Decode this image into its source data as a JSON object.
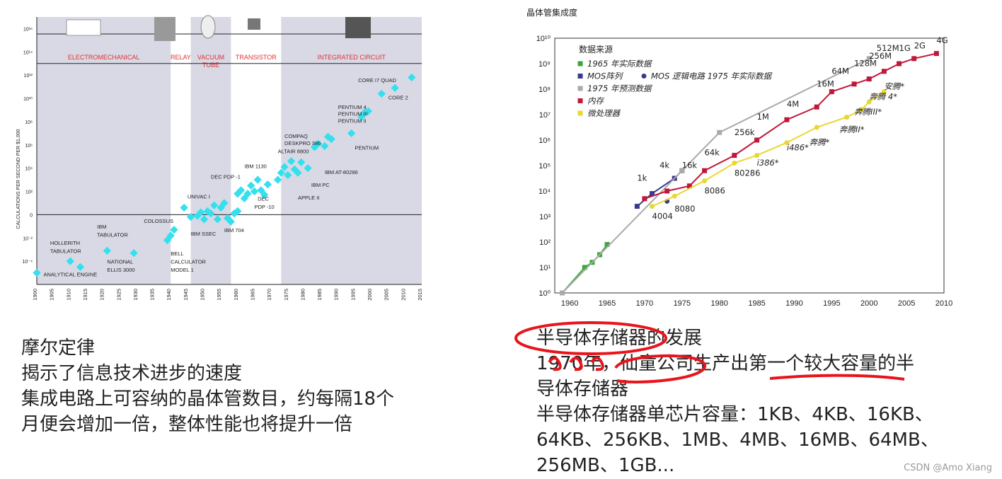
{
  "chart_data": [
    {
      "type": "scatter",
      "ylabel": "CALCULATIONS PER SECOND PER $1,000",
      "y_scale": "log",
      "y_ticks": [
        "10¹⁶",
        "10¹⁴",
        "10¹²",
        "10¹⁰",
        "10⁸",
        "10⁶",
        "10⁴",
        "10²",
        "0",
        "10⁻²",
        "10⁻⁴"
      ],
      "y_tick_values": [
        16,
        14,
        12,
        10,
        8,
        6,
        4,
        2,
        0,
        -2,
        -4
      ],
      "x_ticks": [
        "1900",
        "1905",
        "1910",
        "1915",
        "1920",
        "1925",
        "1930",
        "1935",
        "1940",
        "1945",
        "1950",
        "1955",
        "1960",
        "1965",
        "1970",
        "1975",
        "1980",
        "1985",
        "1990",
        "1995",
        "2000",
        "2005",
        "2010",
        "2015"
      ],
      "xlim": [
        1900,
        2015
      ],
      "ylim": [
        -6,
        17
      ],
      "eras": [
        {
          "label": "ELECTROMECHANICAL",
          "from": 1900,
          "to": 1940,
          "shaded": true
        },
        {
          "label": "RELAY",
          "from": 1940,
          "to": 1946,
          "shaded": false
        },
        {
          "label": "VACUUM TUBE",
          "from": 1946,
          "to": 1958,
          "shaded": true
        },
        {
          "label": "TRANSISTOR",
          "from": 1958,
          "to": 1973,
          "shaded": false
        },
        {
          "label": "INTEGRATED CIRCUIT",
          "from": 1973,
          "to": 2015,
          "shaded": true
        }
      ],
      "points": [
        [
          1900,
          -5
        ],
        [
          1910,
          -4
        ],
        [
          1913,
          -4.5
        ],
        [
          1921,
          -3.1
        ],
        [
          1929,
          -3.3
        ],
        [
          1939,
          -2.2
        ],
        [
          1940,
          -1.8
        ],
        [
          1941,
          -1.3
        ],
        [
          1944,
          0.6
        ],
        [
          1946,
          -0.2
        ],
        [
          1948,
          -0.1
        ],
        [
          1949,
          0.2
        ],
        [
          1950,
          -0.4
        ],
        [
          1951,
          0.3
        ],
        [
          1952,
          0.1
        ],
        [
          1953,
          0.8
        ],
        [
          1954,
          -0.4
        ],
        [
          1955,
          0.6
        ],
        [
          1956,
          1.0
        ],
        [
          1957,
          -0.3
        ],
        [
          1958,
          -0.6
        ],
        [
          1959,
          0.1
        ],
        [
          1960,
          0.3
        ],
        [
          1960,
          1.8
        ],
        [
          1961,
          2.1
        ],
        [
          1962,
          1.4
        ],
        [
          1963,
          1.8
        ],
        [
          1964,
          2.5
        ],
        [
          1965,
          2.0
        ],
        [
          1966,
          3.0
        ],
        [
          1967,
          2.1
        ],
        [
          1968,
          1.7
        ],
        [
          1969,
          2.6
        ],
        [
          1972,
          3.0
        ],
        [
          1973,
          3.6
        ],
        [
          1974,
          4.1
        ],
        [
          1975,
          3.4
        ],
        [
          1976,
          4.6
        ],
        [
          1977,
          3.9
        ],
        [
          1978,
          3.6
        ],
        [
          1979,
          4.5
        ],
        [
          1981,
          4.0
        ],
        [
          1983,
          5.8
        ],
        [
          1984,
          6.1
        ],
        [
          1986,
          5.9
        ],
        [
          1987,
          6.7
        ],
        [
          1988,
          6.5
        ],
        [
          1994,
          7.0
        ],
        [
          1997,
          8.4
        ],
        [
          1998,
          8.8
        ],
        [
          1999,
          8.9
        ],
        [
          2003,
          10.4
        ],
        [
          2007,
          10.9
        ],
        [
          2012,
          11.8
        ]
      ],
      "annotations": [
        "ANALYTICAL ENGINE",
        "HOLLERITH TABULATOR",
        "IBM TABULATOR",
        "NATIONAL ELLIS 3000",
        "COLOSSUS",
        "BELL CALCULATOR MODEL 1",
        "IBM SSEC",
        "IBM 704",
        "UNIVAC I",
        "DEC PDP -1",
        "IBM 1130",
        "DEC PDP -10",
        "ALTAIR 8800",
        "COMPAQ DESKPRO 386",
        "IBM AT-80286",
        "IBM PC",
        "APPLE II",
        "PENTIUM 4",
        "PENTIUM III",
        "PENTIUM II",
        "PENTIUM",
        "CORE I7 QUAD",
        "CORE 2"
      ],
      "colors": {
        "points": "#33e0ee",
        "era_label": "#e03030",
        "shade": "#d9d9e6"
      }
    },
    {
      "type": "line",
      "title": "晶体管集成度",
      "legend_title": "数据来源",
      "x_ticks": [
        "1960",
        "1965",
        "1970",
        "1975",
        "1980",
        "1985",
        "1990",
        "1995",
        "2000",
        "2005",
        "2010"
      ],
      "xlim": [
        1958,
        2010
      ],
      "y_ticks": [
        "10⁰",
        "10¹",
        "10²",
        "10³",
        "10⁴",
        "10⁵",
        "10⁶",
        "10⁷",
        "10⁸",
        "10⁹",
        "10¹⁰"
      ],
      "ylim": [
        0,
        10
      ],
      "y_scale": "log",
      "series": [
        {
          "name": "1965 年实际数据",
          "color": "#3aa63a",
          "marker": "square",
          "x": [
            1959,
            1962,
            1963,
            1964,
            1965
          ],
          "y": [
            0,
            1,
            1.2,
            1.5,
            1.9
          ]
        },
        {
          "name": "MOS阵列",
          "color": "#3a3a8c",
          "marker": "square",
          "x": [
            1969,
            1971,
            1974,
            1975
          ],
          "y": [
            3.4,
            3.9,
            4.5,
            4.8
          ]
        },
        {
          "name": "MOS 逻辑电路  1975 年实际数据",
          "color": "#3a3a8c",
          "marker": "circle",
          "x": [
            1973
          ],
          "y": [
            3.6
          ]
        },
        {
          "name": "1975 年预测数据",
          "color": "#aaaaaa",
          "marker": "square",
          "x": [
            1959,
            1975,
            1980,
            2000
          ],
          "y": [
            0,
            4.8,
            6.3,
            9.2
          ]
        },
        {
          "name": "内存",
          "color": "#c0173a",
          "marker": "square",
          "x": [
            1970,
            1973,
            1976,
            1978,
            1982,
            1985,
            1989,
            1993,
            1995,
            1998,
            2000,
            2002,
            2004,
            2006,
            2009
          ],
          "y": [
            3.7,
            4,
            4.2,
            4.8,
            5.4,
            6,
            6.8,
            7.3,
            7.9,
            8.2,
            8.4,
            8.7,
            9,
            9.2,
            9.4
          ]
        },
        {
          "name": "微处理器",
          "color": "#e8d830",
          "marker": "circle",
          "x": [
            1971,
            1974,
            1978,
            1982,
            1985,
            1989,
            1993,
            1997,
            1999,
            2000,
            2002
          ],
          "y": [
            3.4,
            3.8,
            4.4,
            5.1,
            5.4,
            5.9,
            6.5,
            6.9,
            7.2,
            7.5,
            7.9
          ]
        }
      ],
      "labels": [
        "1k",
        "4k",
        "16k",
        "64k",
        "256k",
        "1M",
        "4M",
        "16M",
        "64M",
        "128M",
        "256M",
        "512M",
        "1G",
        "2G",
        "4G",
        "4004",
        "8080",
        "8086",
        "80286",
        "i386*",
        "i486*",
        "奔腾*",
        "奔腾II*",
        "奔腾III*",
        "奔腾 4*",
        "安腾*"
      ]
    }
  ],
  "left_text": {
    "line1": "摩尔定律",
    "line2": "揭示了信息技术进步的速度",
    "line3": "集成电路上可容纳的晶体管数目，约每隔18个",
    "line4": "月便会增加一倍，整体性能也将提升一倍"
  },
  "right_text": {
    "line1": "半导体存储器的发展",
    "line2": "1970年，仙童公司生产出第一个较大容量的半",
    "line3": "导体存储器",
    "line4": "半导体存储器单芯片容量：1KB、4KB、16KB、",
    "line5": "64KB、256KB、1MB、4MB、16MB、64MB、",
    "line6": "256MB、1GB..."
  },
  "watermark": "CSDN @Amo Xiang"
}
